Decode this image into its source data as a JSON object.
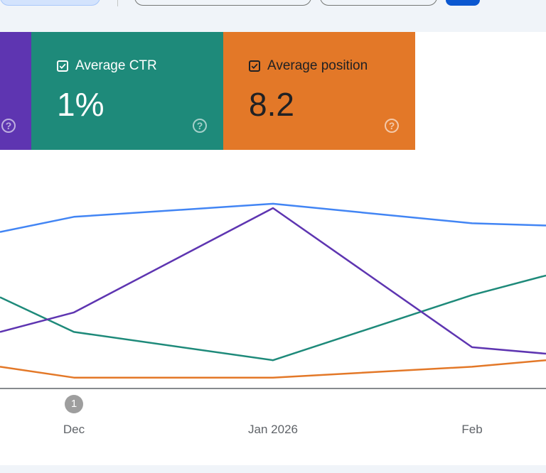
{
  "cards": {
    "ctr": {
      "label": "Average CTR",
      "value": "1%",
      "color": "#1e8a7a",
      "help_icon": "help-circle-icon"
    },
    "position": {
      "label": "Average position",
      "value": "8.2",
      "color": "#e37828",
      "help_icon": "help-circle-icon"
    },
    "clicks": {
      "color": "#5e35b1",
      "help_icon": "help-circle-icon"
    }
  },
  "chart_data": {
    "type": "line",
    "x_labels": [
      "Dec",
      "Jan 2026",
      "Feb"
    ],
    "annotation": "1",
    "grid": false,
    "series": [
      {
        "color": "#4285f4",
        "values": [
          0.72,
          0.79,
          0.85,
          0.76,
          0.75
        ]
      },
      {
        "color": "#5e35b1",
        "values": [
          0.26,
          0.35,
          0.83,
          0.19,
          0.16
        ]
      },
      {
        "color": "#1e8a7a",
        "values": [
          0.42,
          0.26,
          0.13,
          0.43,
          0.52
        ]
      },
      {
        "color": "#e37828",
        "values": [
          0.1,
          0.05,
          0.05,
          0.1,
          0.13
        ]
      }
    ]
  }
}
